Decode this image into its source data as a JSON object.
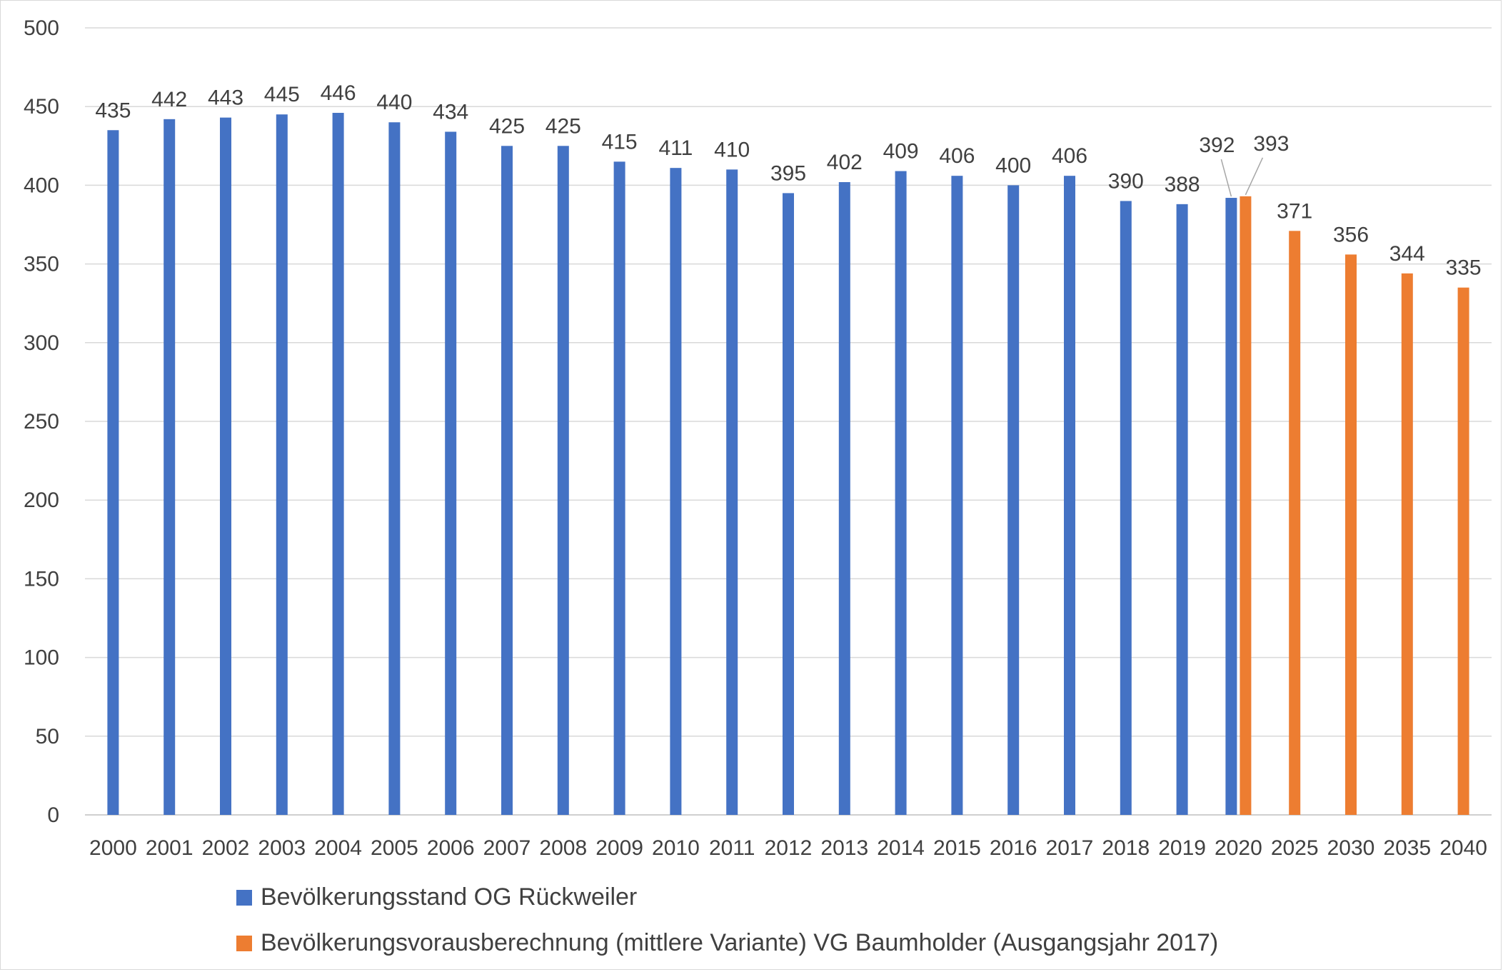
{
  "chart_data": {
    "type": "bar",
    "categories": [
      "2000",
      "2001",
      "2002",
      "2003",
      "2004",
      "2005",
      "2006",
      "2007",
      "2008",
      "2009",
      "2010",
      "2011",
      "2012",
      "2013",
      "2014",
      "2015",
      "2016",
      "2017",
      "2018",
      "2019",
      "2020",
      "2025",
      "2030",
      "2035",
      "2040"
    ],
    "series": [
      {
        "name": "Bevölkerungsstand OG Rückweiler",
        "color": "#4472C4",
        "values": [
          435,
          442,
          443,
          445,
          446,
          440,
          434,
          425,
          425,
          415,
          411,
          410,
          395,
          402,
          409,
          406,
          400,
          406,
          390,
          388,
          392,
          null,
          null,
          null,
          null
        ]
      },
      {
        "name": "Bevölkerungsvorausberechnung (mittlere Variante) VG Baumholder (Ausgangsjahr 2017)",
        "color": "#ED7D31",
        "values": [
          null,
          null,
          null,
          null,
          null,
          null,
          null,
          null,
          null,
          null,
          null,
          null,
          null,
          null,
          null,
          null,
          null,
          null,
          null,
          null,
          393,
          371,
          356,
          344,
          335
        ]
      }
    ],
    "ylim": [
      0,
      500
    ],
    "yticks": [
      0,
      50,
      100,
      150,
      200,
      250,
      300,
      350,
      400,
      450,
      500
    ],
    "grid": true,
    "legend_position": "bottom",
    "title": "",
    "xlabel": "",
    "ylabel": ""
  }
}
